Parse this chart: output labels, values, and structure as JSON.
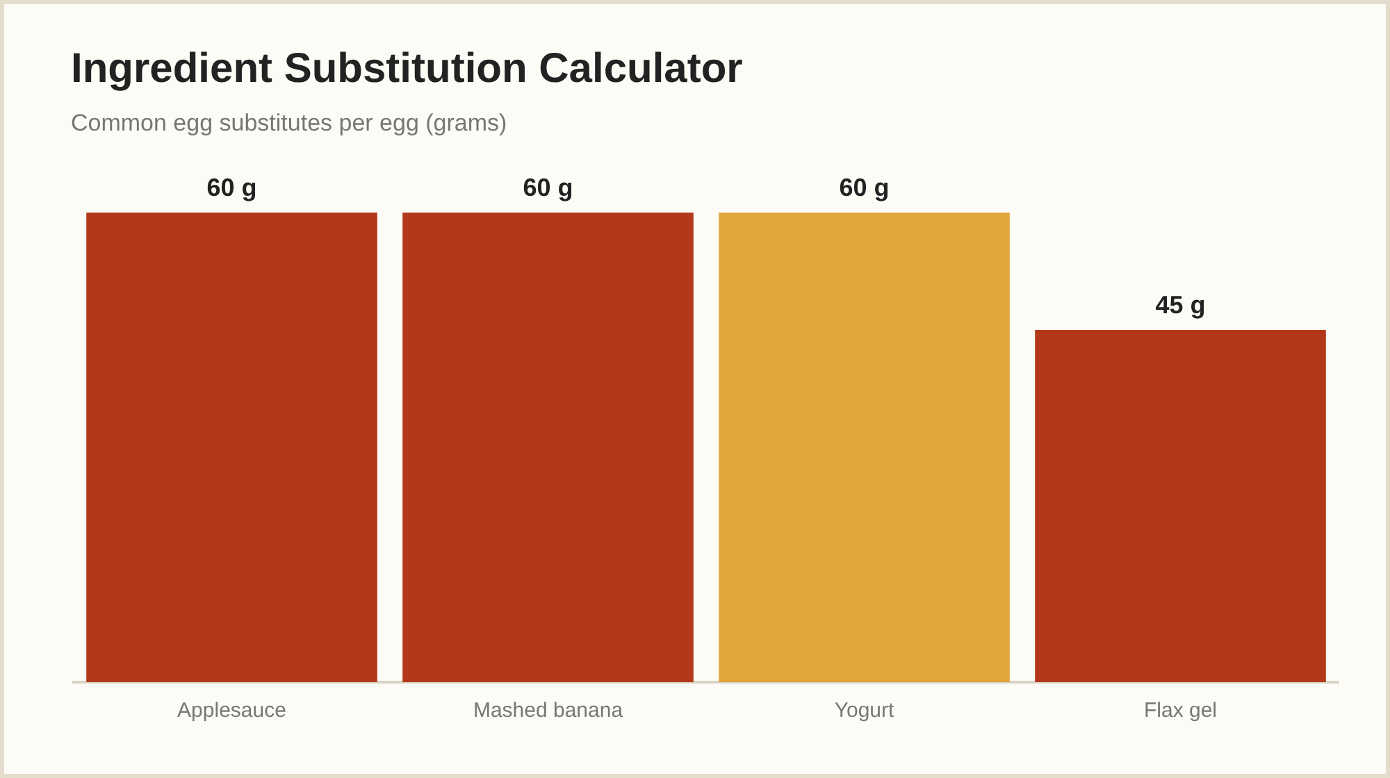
{
  "chart_data": {
    "type": "bar",
    "title": "Ingredient Substitution Calculator",
    "subtitle": "Common egg substitutes per egg (grams)",
    "categories": [
      "Applesauce",
      "Mashed banana",
      "Yogurt",
      "Flax gel"
    ],
    "values": [
      60,
      60,
      60,
      45
    ],
    "colors": [
      "#b33819",
      "#b33819",
      "#e0a63c",
      "#b33819"
    ],
    "value_labels": [
      "60 g",
      "60 g",
      "60 g",
      "45 g"
    ],
    "grid": false,
    "legend": false
  }
}
